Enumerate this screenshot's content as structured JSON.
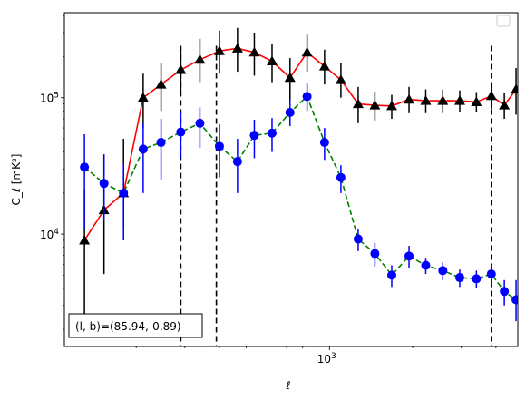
{
  "chart_data": {
    "type": "line",
    "xlabel": "ℓ",
    "ylabel": "C_ℓ  [mK²]",
    "x_scale": "log",
    "y_scale": "log",
    "xlim": [
      110,
      4800
    ],
    "ylim": [
      1500,
      420000
    ],
    "x_tick_labels": [
      {
        "value": 1000,
        "base": "10",
        "exp": "3"
      }
    ],
    "y_tick_labels": [
      {
        "value": 10000,
        "base": "10",
        "exp": "4"
      },
      {
        "value": 100000,
        "base": "10",
        "exp": "5"
      }
    ],
    "annotation": "(l, b)=(85.94,-0.89)",
    "legend": {
      "position": "top-right",
      "entries": []
    },
    "vertical_lines": [
      290,
      390,
      3850
    ],
    "series": [
      {
        "name": "",
        "color": "#ff0000",
        "marker": "triangle",
        "marker_color": "#000000",
        "errorbar_color": "#000000",
        "line_style": "solid",
        "x": [
          130,
          153,
          180,
          212,
          246,
          290,
          340,
          400,
          465,
          535,
          620,
          720,
          830,
          960,
          1100,
          1270,
          1460,
          1680,
          1940,
          2230,
          2570,
          2960,
          3400,
          3850,
          4290,
          4730
        ],
        "y": [
          9000,
          15000,
          20000,
          100000,
          125000,
          160000,
          190000,
          220000,
          230000,
          215000,
          185000,
          140000,
          215000,
          170000,
          135000,
          90000,
          88000,
          87000,
          97000,
          95000,
          95000,
          95000,
          93000,
          103000,
          88000,
          115000
        ],
        "err_low": [
          6500,
          9900,
          9000,
          40000,
          45000,
          55000,
          60000,
          70000,
          75000,
          70000,
          55000,
          45000,
          60000,
          45000,
          35000,
          25000,
          20000,
          17000,
          20000,
          18000,
          18000,
          17000,
          15000,
          20000,
          18000,
          40000
        ],
        "err_high": [
          12000,
          23000,
          30000,
          50000,
          55000,
          75000,
          80000,
          90000,
          95000,
          85000,
          65000,
          55000,
          75000,
          55000,
          45000,
          30000,
          23000,
          18000,
          23000,
          20000,
          20000,
          18000,
          17000,
          23000,
          20000,
          50000
        ]
      },
      {
        "name": "",
        "color": "#008000",
        "marker": "circle",
        "marker_color": "#0000ff",
        "errorbar_color": "#0000ff",
        "line_style": "dashed",
        "x": [
          130,
          153,
          180,
          212,
          246,
          290,
          340,
          400,
          465,
          535,
          620,
          720,
          830,
          960,
          1100,
          1270,
          1460,
          1680,
          1940,
          2230,
          2570,
          2960,
          3400,
          3850,
          4290,
          4730
        ],
        "y": [
          31000,
          23500,
          20000,
          42000,
          47000,
          56000,
          65000,
          44000,
          34000,
          53000,
          55000,
          78000,
          102000,
          47000,
          26000,
          9200,
          7200,
          5000,
          6900,
          5900,
          5400,
          4800,
          4700,
          5100,
          3800,
          3300
        ],
        "err_low": [
          20000,
          11000,
          11000,
          22000,
          22000,
          20000,
          22000,
          18000,
          14000,
          17000,
          15000,
          16000,
          22000,
          12000,
          6000,
          1700,
          1400,
          900,
          1300,
          800,
          800,
          700,
          700,
          900,
          800,
          1000
        ],
        "err_high": [
          23000,
          15000,
          13000,
          23000,
          23000,
          22000,
          20000,
          20000,
          16000,
          16000,
          16000,
          20000,
          25000,
          13000,
          6000,
          1700,
          1400,
          900,
          1300,
          800,
          800,
          700,
          700,
          900,
          800,
          1300
        ]
      }
    ]
  }
}
